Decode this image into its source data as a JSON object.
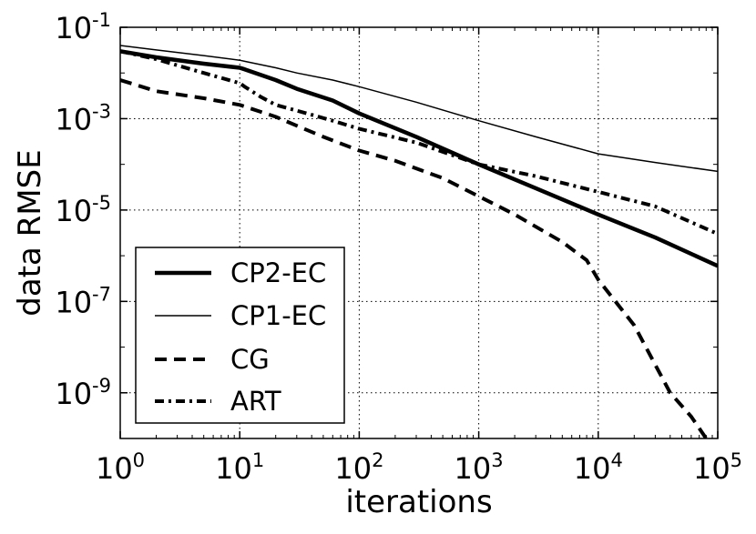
{
  "chart_data": {
    "type": "line",
    "xscale": "log",
    "yscale": "log",
    "xlabel": "iterations",
    "ylabel": "data RMSE",
    "xlim": [
      1,
      100000
    ],
    "ylim": [
      1e-10,
      0.1
    ],
    "grid": true,
    "legend_location": "lower-left",
    "x_ticks": [
      {
        "base": "10",
        "exp": "0"
      },
      {
        "base": "10",
        "exp": "1"
      },
      {
        "base": "10",
        "exp": "2"
      },
      {
        "base": "10",
        "exp": "3"
      },
      {
        "base": "10",
        "exp": "4"
      },
      {
        "base": "10",
        "exp": "5"
      }
    ],
    "y_ticks": [
      {
        "base": "10",
        "exp": "-1"
      },
      {
        "base": "10",
        "exp": "-3"
      },
      {
        "base": "10",
        "exp": "-5"
      },
      {
        "base": "10",
        "exp": "-7"
      },
      {
        "base": "10",
        "exp": "-9"
      }
    ],
    "series": [
      {
        "name": "CP2-EC",
        "style": "solid-thick",
        "x": [
          1,
          2,
          5,
          10,
          11,
          20,
          30,
          60,
          100,
          300,
          1000,
          3000,
          10000,
          30000,
          100000
        ],
        "y": [
          0.03,
          0.022,
          0.016,
          0.013,
          0.012,
          0.007,
          0.0045,
          0.0025,
          0.0013,
          0.0004,
          0.0001,
          3e-05,
          8e-06,
          2.5e-06,
          6e-07
        ]
      },
      {
        "name": "CP1-EC",
        "style": "solid-thin",
        "x": [
          1,
          2,
          5,
          10,
          11,
          20,
          30,
          60,
          100,
          300,
          1000,
          3000,
          10000,
          30000,
          100000
        ],
        "y": [
          0.04,
          0.032,
          0.024,
          0.019,
          0.018,
          0.013,
          0.01,
          0.007,
          0.005,
          0.0023,
          0.0009,
          0.0004,
          0.00017,
          0.00011,
          7e-05
        ]
      },
      {
        "name": "CG",
        "style": "dashed",
        "x": [
          1,
          2,
          5,
          10,
          20,
          30,
          50,
          100,
          200,
          500,
          1000,
          2000,
          5000,
          8000,
          10000,
          20000,
          40000,
          60000,
          80000
        ],
        "y": [
          0.007,
          0.004,
          0.0028,
          0.002,
          0.0011,
          0.0007,
          0.0004,
          0.0002,
          0.00012,
          5e-05,
          2e-05,
          8e-06,
          2e-06,
          8e-07,
          3e-07,
          3e-08,
          1e-09,
          3e-10,
          1e-10
        ]
      },
      {
        "name": "ART",
        "style": "dash-dot",
        "x": [
          1,
          2,
          5,
          10,
          11,
          15,
          20,
          30,
          60,
          100,
          300,
          1000,
          3000,
          10000,
          30000,
          100000
        ],
        "y": [
          0.03,
          0.02,
          0.01,
          0.006,
          0.005,
          0.003,
          0.002,
          0.0015,
          0.0009,
          0.0006,
          0.0003,
          0.0001,
          5.5e-05,
          2.5e-05,
          1.2e-05,
          3e-06
        ]
      }
    ]
  }
}
